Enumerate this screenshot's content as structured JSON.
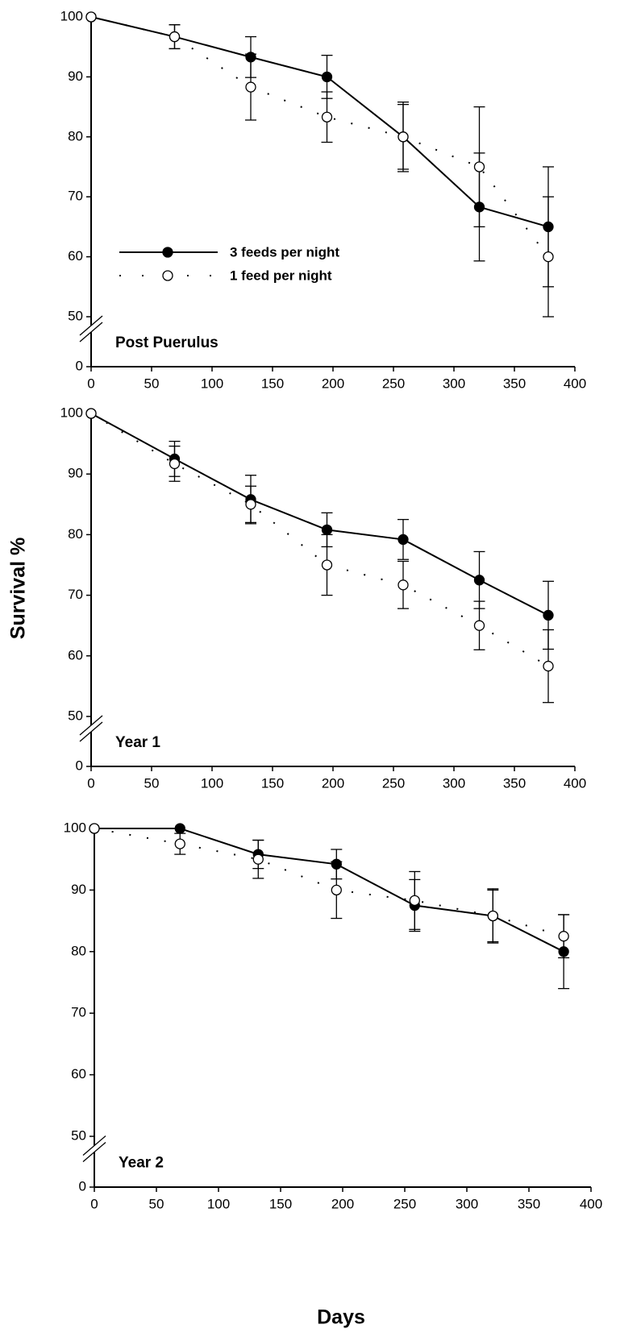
{
  "ylabel": "Survival %",
  "xlabel": "Days",
  "chart_data": [
    {
      "type": "line",
      "annotation": "Post Puerulus",
      "legend": "center left",
      "xlim": [
        0,
        400
      ],
      "xticks": [
        0,
        50,
        100,
        150,
        200,
        250,
        300,
        350,
        400
      ],
      "ylim": [
        0,
        100
      ],
      "y_break": 50,
      "yticks": [
        0,
        50,
        60,
        70,
        80,
        90,
        100
      ],
      "x": [
        0,
        69,
        132,
        195,
        258,
        321,
        378
      ],
      "series": [
        {
          "name": "3 feeds per night",
          "color": "#000000",
          "marker_fill": "#000000",
          "line_style": "solid",
          "values": [
            100,
            96.7,
            93.3,
            90,
            80,
            68.3,
            65
          ],
          "errors": [
            0,
            2,
            3.4,
            3.6,
            5.8,
            9,
            10
          ]
        },
        {
          "name": "1 feed per night",
          "color": "#000000",
          "marker_fill": "#ffffff",
          "line_style": "dotted",
          "values": [
            100,
            96.7,
            88.3,
            83.3,
            80,
            75,
            60
          ],
          "errors": [
            0,
            2,
            5.5,
            4.2,
            5.4,
            10,
            10
          ]
        }
      ]
    },
    {
      "type": "line",
      "annotation": "Year 1",
      "xlim": [
        0,
        400
      ],
      "xticks": [
        0,
        50,
        100,
        150,
        200,
        250,
        300,
        350,
        400
      ],
      "ylim": [
        0,
        100
      ],
      "y_break": 50,
      "yticks": [
        0,
        50,
        60,
        70,
        80,
        90,
        100
      ],
      "x": [
        0,
        69,
        132,
        195,
        258,
        321,
        378
      ],
      "series": [
        {
          "color": "#000000",
          "marker_fill": "#000000",
          "line_style": "solid",
          "values": [
            100,
            92.5,
            85.8,
            80.8,
            79.2,
            72.5,
            66.7
          ],
          "errors": [
            0,
            2.9,
            4,
            2.8,
            3.3,
            4.7,
            5.6
          ]
        },
        {
          "color": "#000000",
          "marker_fill": "#ffffff",
          "line_style": "dotted",
          "values": [
            100,
            91.7,
            85,
            75,
            71.7,
            65,
            58.3
          ],
          "errors": [
            0,
            2.9,
            3,
            5,
            3.9,
            4,
            6
          ]
        }
      ]
    },
    {
      "type": "line",
      "annotation": "Year 2",
      "xlim": [
        0,
        400
      ],
      "xticks": [
        0,
        50,
        100,
        150,
        200,
        250,
        300,
        350,
        400
      ],
      "ylim": [
        0,
        100
      ],
      "y_break": 50,
      "yticks": [
        0,
        50,
        60,
        70,
        80,
        90,
        100
      ],
      "x": [
        0,
        69,
        132,
        195,
        258,
        321,
        378
      ],
      "series": [
        {
          "color": "#000000",
          "marker_fill": "#000000",
          "line_style": "solid",
          "values": [
            100,
            100,
            95.8,
            94.2,
            87.5,
            85.8,
            80
          ],
          "errors": [
            0,
            0,
            2.3,
            2.4,
            4.2,
            4.2,
            6
          ]
        },
        {
          "color": "#000000",
          "marker_fill": "#ffffff",
          "line_style": "dotted",
          "values": [
            100,
            97.5,
            95,
            90,
            88.3,
            85.8,
            82.5
          ],
          "errors": [
            0,
            1.7,
            3.1,
            4.6,
            4.7,
            4.4,
            3.5
          ]
        }
      ]
    }
  ]
}
